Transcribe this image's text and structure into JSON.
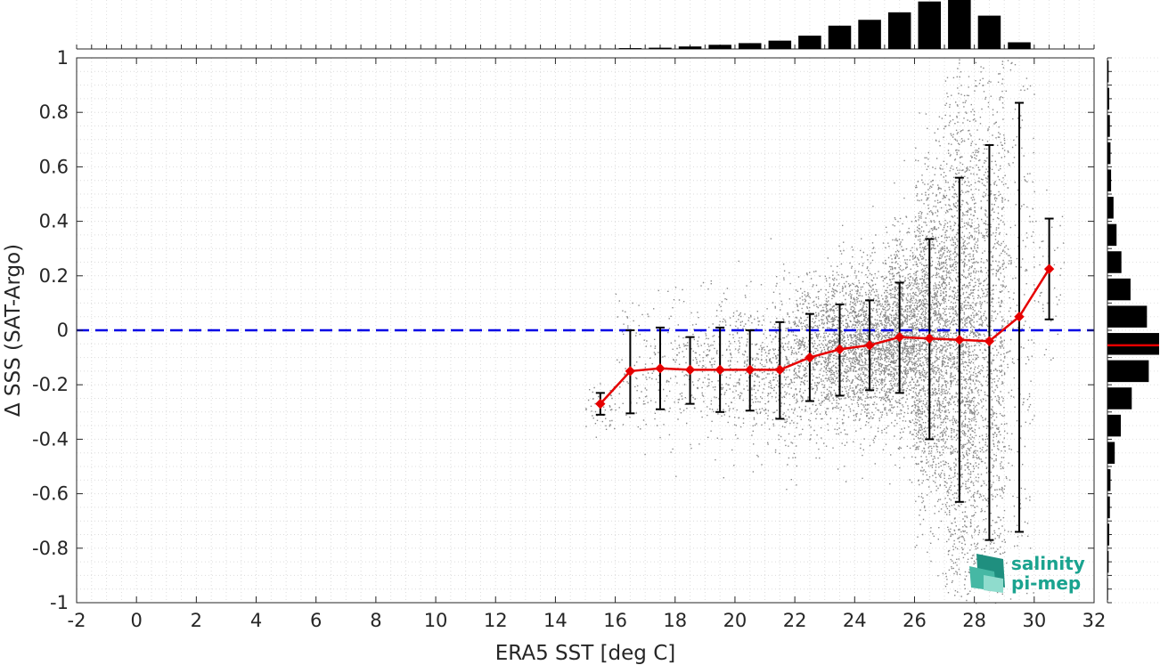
{
  "chart_data": {
    "type": "scatter",
    "title": "",
    "xlabel": "ERA5 SST [deg C]",
    "ylabel": "Δ SSS (SAT-Argo)",
    "xlim": [
      -2,
      32
    ],
    "ylim": [
      -1,
      1
    ],
    "x_ticks": [
      "-2",
      "0",
      "2",
      "4",
      "6",
      "8",
      "10",
      "12",
      "14",
      "16",
      "18",
      "20",
      "22",
      "24",
      "26",
      "28",
      "30",
      "32"
    ],
    "y_ticks": [
      "-1",
      "-0.8",
      "-0.6",
      "-0.4",
      "-0.2",
      "0",
      "0.2",
      "0.4",
      "0.6",
      "0.8",
      "1"
    ],
    "grid": true,
    "zero_line": {
      "y": 0,
      "color": "#0000e6",
      "style": "dashed"
    },
    "binned_mean": {
      "color": "#e60000",
      "marker": "diamond",
      "x": [
        15.5,
        16.5,
        17.5,
        18.5,
        19.5,
        20.5,
        21.5,
        22.5,
        23.5,
        24.5,
        25.5,
        26.5,
        27.5,
        28.5,
        29.5,
        30.5
      ],
      "mean": [
        -0.27,
        -0.15,
        -0.14,
        -0.145,
        -0.145,
        -0.145,
        -0.145,
        -0.1,
        -0.07,
        -0.055,
        -0.025,
        -0.03,
        -0.035,
        -0.04,
        0.05,
        0.225
      ],
      "std_low": [
        -0.31,
        -0.305,
        -0.29,
        -0.27,
        -0.3,
        -0.295,
        -0.325,
        -0.26,
        -0.24,
        -0.22,
        -0.23,
        -0.4,
        -0.63,
        -0.77,
        -0.74,
        0.04
      ],
      "std_high": [
        -0.23,
        0.0,
        0.01,
        -0.025,
        0.01,
        0.0,
        0.03,
        0.06,
        0.095,
        0.11,
        0.175,
        0.335,
        0.56,
        0.68,
        0.835,
        0.41
      ]
    },
    "scatter_color": "#888888",
    "sst_histogram": {
      "x": [
        15.5,
        16.5,
        17.5,
        18.5,
        19.5,
        20.5,
        21.5,
        22.5,
        23.5,
        24.5,
        25.5,
        26.5,
        27.5,
        28.5,
        29.5,
        30.5
      ],
      "relative_height": [
        0.005,
        0.01,
        0.015,
        0.03,
        0.05,
        0.07,
        0.1,
        0.16,
        0.28,
        0.35,
        0.44,
        0.57,
        0.62,
        0.4,
        0.08,
        0.0
      ]
    },
    "dsss_histogram": {
      "y": [
        0.95,
        0.85,
        0.75,
        0.65,
        0.55,
        0.45,
        0.35,
        0.25,
        0.15,
        0.05,
        -0.05,
        -0.15,
        -0.25,
        -0.35,
        -0.45,
        -0.55,
        -0.65,
        -0.75,
        -0.85,
        -0.95
      ],
      "relative_width": [
        0.02,
        0.03,
        0.04,
        0.05,
        0.06,
        0.1,
        0.15,
        0.23,
        0.38,
        0.65,
        0.85,
        0.68,
        0.4,
        0.22,
        0.12,
        0.05,
        0.04,
        0.03,
        0.02,
        0.01
      ],
      "median_line": {
        "y": -0.055,
        "color": "#e60000"
      }
    }
  },
  "logo": {
    "line1": "salinity",
    "line2": "pi-mep",
    "color": "#1aa38f"
  }
}
